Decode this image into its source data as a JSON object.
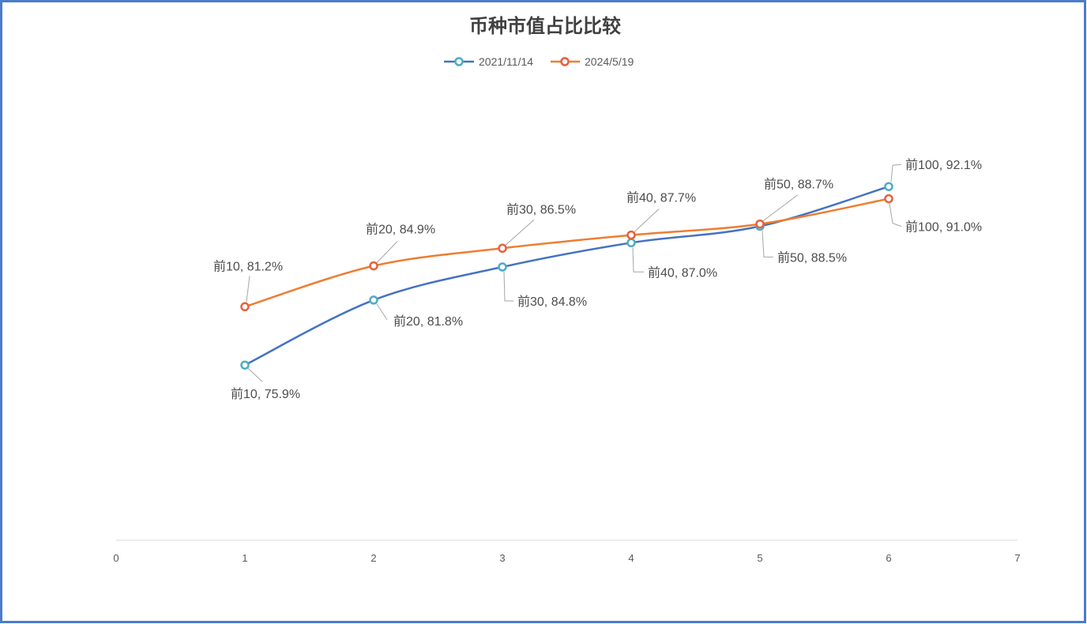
{
  "chart_data": {
    "type": "line",
    "smooth": true,
    "title": "币种市值占比比较",
    "xlabel": "",
    "ylabel": "",
    "xlim": [
      0,
      7
    ],
    "ylim": [
      60,
      100
    ],
    "x_ticks": [
      0,
      1,
      2,
      3,
      4,
      5,
      6,
      7
    ],
    "y_axis_visible": false,
    "grid": false,
    "legend_position": "top",
    "series": [
      {
        "name": "2021/11/14",
        "line_color": "#4472C4",
        "marker_color": "#4BACC6",
        "x": [
          1,
          2,
          3,
          4,
          5,
          6
        ],
        "y": [
          75.9,
          81.8,
          84.8,
          87.0,
          88.5,
          92.1
        ],
        "data_labels": [
          "前10, 75.9%",
          "前20, 81.8%",
          "前30, 84.8%",
          "前40, 87.0%",
          "前50, 88.5%",
          "前100, 92.1%"
        ]
      },
      {
        "name": "2024/5/19",
        "line_color": "#ED7D31",
        "marker_color": "#E8603C",
        "x": [
          1,
          2,
          3,
          4,
          5,
          6
        ],
        "y": [
          81.2,
          84.9,
          86.5,
          87.7,
          88.7,
          91.0
        ],
        "data_labels": [
          "前10, 81.2%",
          "前20, 84.9%",
          "前30, 86.5%",
          "前40, 87.7%",
          "前50, 88.7%",
          "前100, 91.0%"
        ]
      }
    ]
  }
}
